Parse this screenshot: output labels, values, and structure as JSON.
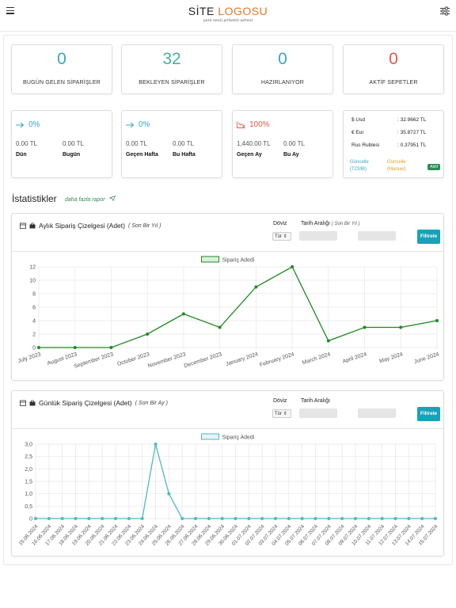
{
  "header": {
    "logo_main": "SİTE ",
    "logo_accent": "LOGOSU",
    "logo_tagline": "yeni nesil şirketin adresi",
    "brand_color": "#e0772a"
  },
  "order_stats": [
    {
      "value": "0",
      "label": "BUGÜN GELEN SİPARİŞLER",
      "color": "#3ba4c8"
    },
    {
      "value": "32",
      "label": "BEKLEYEN SİPARİŞLER",
      "color": "#45b0a0"
    },
    {
      "value": "0",
      "label": "HAZIRLANIYOR",
      "color": "#3ba4c8"
    },
    {
      "value": "0",
      "label": "AKTİF SEPETLER",
      "color": "#e05a4a"
    }
  ],
  "comparisons": [
    {
      "icon": "arrow-right-icon",
      "percent": "0%",
      "color": "#3ba4c8",
      "value_a": "0.00 TL",
      "value_b": "0.00 TL",
      "label_a": "Dün",
      "label_b": "Bugün"
    },
    {
      "icon": "arrow-right-icon",
      "percent": "0%",
      "color": "#3ba4c8",
      "value_a": "0.00 TL",
      "value_b": "0.00 TL",
      "label_a": "Geçen Hafta",
      "label_b": "Bu Hafta"
    },
    {
      "icon": "trend-down-icon",
      "percent": "100%",
      "color": "#e05a4a",
      "value_a": "1,440.00 TL",
      "value_b": "0.00 TL",
      "label_a": "Geçen Ay",
      "label_b": "Bu Ay"
    }
  ],
  "rates": {
    "rows": [
      {
        "name": "$ Usd",
        "value": ": 32.9662 TL"
      },
      {
        "name": "€ Eur",
        "value": ": 35.8727 TL"
      },
      {
        "name": "Rus Rublesi",
        "value": ": 0.37951 TL"
      }
    ],
    "tcmb_label": "Güncelle\n(TCMB)",
    "manual_label": "Güncelle\n(Manuel)",
    "badge": "Aktif"
  },
  "statistics": {
    "title": "İstatistikler",
    "more_link": "daha fazla rapor"
  },
  "monthly_chart_card": {
    "title": "Aylık Sipariş Çizelgesi (Adet)",
    "subtitle": "( Son Bir Yıl )",
    "currency_label": "Döviz",
    "currency_select": "Tür",
    "date_label": "Tarih Aralığı",
    "date_hint": "( Son Bir Yıl )",
    "filter_button": "Filtrele"
  },
  "daily_chart_card": {
    "title": "Günlük Sipariş Çizelgesi (Adet)",
    "subtitle": "( Son Bir Ay )",
    "currency_label": "Döviz",
    "currency_select": "Tür",
    "date_label": "Tarih Aralığı",
    "date_hint": "",
    "filter_button": "Filtrele"
  },
  "chart_data": [
    {
      "type": "line",
      "series": [
        {
          "name": "Sipariş Adedi",
          "color": "#1f8a1f",
          "values": [
            0,
            0,
            0,
            2,
            5,
            3,
            9,
            12,
            1,
            3,
            3,
            4
          ]
        }
      ],
      "categories": [
        "July 2023",
        "August 2023",
        "September 2023",
        "October 2023",
        "November 2023",
        "December 2023",
        "January 2024",
        "February 2024",
        "March 2024",
        "April 2024",
        "May 2024",
        "June 2024"
      ],
      "yticks": [
        "0",
        "2",
        "4",
        "6",
        "8",
        "10",
        "12"
      ],
      "ylim": [
        0,
        12
      ],
      "grid": true,
      "legend": "top"
    },
    {
      "type": "line",
      "series": [
        {
          "name": "Sipariş Adedi",
          "color": "#4fb8c0",
          "values": [
            0,
            0,
            0,
            0,
            0,
            0,
            0,
            0,
            0,
            3,
            1,
            0,
            0,
            0,
            0,
            0,
            0,
            0,
            0,
            0,
            0,
            0,
            0,
            0,
            0,
            0,
            0,
            0,
            0,
            0,
            0
          ]
        }
      ],
      "categories": [
        "15.06.2024",
        "16.06.2024",
        "17.06.2024",
        "18.06.2024",
        "19.06.2024",
        "20.06.2024",
        "21.06.2024",
        "22.06.2024",
        "23.06.2024",
        "24.06.2024",
        "25.06.2024",
        "26.06.2024",
        "27.06.2024",
        "28.06.2024",
        "29.06.2024",
        "30.06.2024",
        "01.07.2024",
        "02.07.2024",
        "03.07.2024",
        "04.07.2024",
        "05.07.2024",
        "06.07.2024",
        "07.07.2024",
        "08.07.2024",
        "09.07.2024",
        "10.07.2024",
        "11.07.2024",
        "12.07.2024",
        "13.07.2024",
        "14.07.2024",
        "15.07.2024"
      ],
      "yticks": [
        "0",
        "0,5",
        "1,0",
        "1,5",
        "2,0",
        "2,5",
        "3,0"
      ],
      "ylim": [
        0,
        3
      ],
      "grid": true,
      "legend": "top"
    }
  ]
}
